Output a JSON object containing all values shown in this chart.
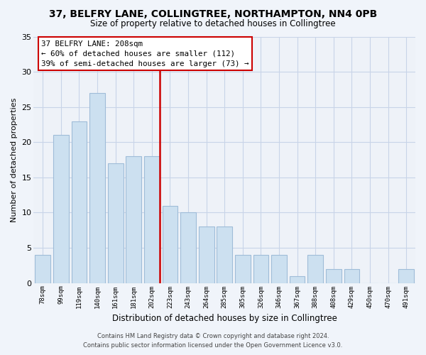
{
  "title": "37, BELFRY LANE, COLLINGTREE, NORTHAMPTON, NN4 0PB",
  "subtitle": "Size of property relative to detached houses in Collingtree",
  "xlabel": "Distribution of detached houses by size in Collingtree",
  "ylabel": "Number of detached properties",
  "categories": [
    "78sqm",
    "99sqm",
    "119sqm",
    "140sqm",
    "161sqm",
    "181sqm",
    "202sqm",
    "223sqm",
    "243sqm",
    "264sqm",
    "285sqm",
    "305sqm",
    "326sqm",
    "346sqm",
    "367sqm",
    "388sqm",
    "408sqm",
    "429sqm",
    "450sqm",
    "470sqm",
    "491sqm"
  ],
  "values": [
    4,
    21,
    23,
    27,
    17,
    18,
    18,
    11,
    10,
    8,
    8,
    4,
    4,
    4,
    1,
    4,
    2,
    2,
    0,
    0,
    2
  ],
  "bar_color": "#cce0f0",
  "bar_edge_color": "#9fbcd8",
  "ref_line_index": 6,
  "ref_line_color": "#cc0000",
  "ylim": [
    0,
    35
  ],
  "yticks": [
    0,
    5,
    10,
    15,
    20,
    25,
    30,
    35
  ],
  "annotation_title": "37 BELFRY LANE: 208sqm",
  "annotation_line1": "← 60% of detached houses are smaller (112)",
  "annotation_line2": "39% of semi-detached houses are larger (73) →",
  "annotation_box_edge_color": "#cc0000",
  "annotation_box_bg": "#ffffff",
  "footer_line1": "Contains HM Land Registry data © Crown copyright and database right 2024.",
  "footer_line2": "Contains public sector information licensed under the Open Government Licence v3.0.",
  "background_color": "#f0f4fa",
  "plot_bg_color": "#eef2f8",
  "grid_color": "#c8d4e8",
  "title_fontsize": 10,
  "subtitle_fontsize": 8.5
}
